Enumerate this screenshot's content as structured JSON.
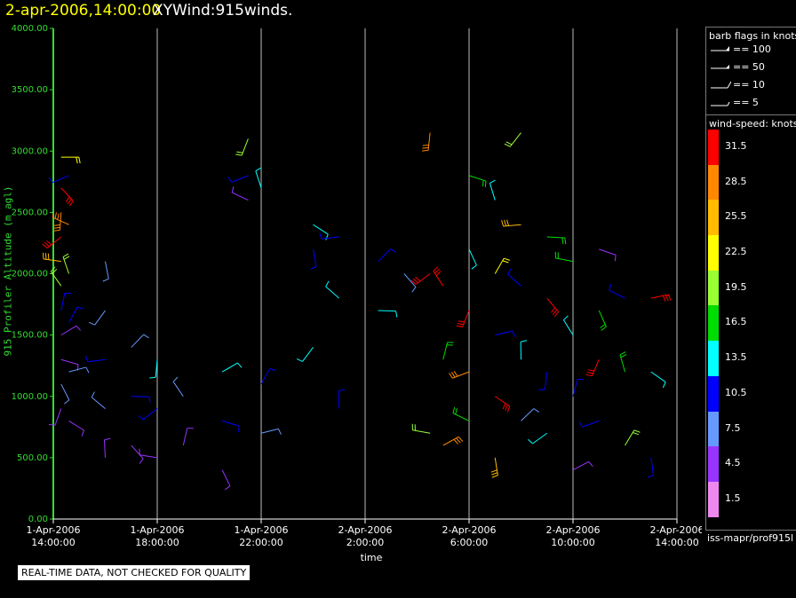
{
  "header": {
    "date_time": "2-apr-2006,14:00:00",
    "title": "XYWind:915winds."
  },
  "legend": {
    "flags_title": "barb flags in knots",
    "flags": [
      {
        "label": "== 100"
      },
      {
        "label": "== 50"
      },
      {
        "label": "== 10"
      },
      {
        "label": "== 5"
      }
    ],
    "speed_title": "wind-speed: knots",
    "scale": [
      {
        "label": "31.5",
        "color": "#ff0000"
      },
      {
        "label": "28.5",
        "color": "#ff8800"
      },
      {
        "label": "25.5",
        "color": "#ffbb00"
      },
      {
        "label": "22.5",
        "color": "#ffff00"
      },
      {
        "label": "19.5",
        "color": "#99ff33"
      },
      {
        "label": "16.5",
        "color": "#00dd00"
      },
      {
        "label": "13.5",
        "color": "#00ffff"
      },
      {
        "label": "10.5",
        "color": "#0000ff"
      },
      {
        "label": "7.5",
        "color": "#6699ff"
      },
      {
        "label": "4.5",
        "color": "#9933ff"
      },
      {
        "label": "1.5",
        "color": "#ee88ee"
      }
    ]
  },
  "footer": {
    "source": "iss-mapr/prof915l",
    "qc_notice": "REAL-TIME DATA, NOT CHECKED FOR QUALITY"
  },
  "chart_data": {
    "type": "scatter",
    "ylabel": "915 Profiler Altitude (m agl)",
    "xlabel": "time",
    "ylim": [
      0,
      4000
    ],
    "yticks": [
      "4000.00",
      "3500.00",
      "3000.00",
      "2500.00",
      "2000.00",
      "1500.00",
      "1000.00",
      "500.00",
      "0.00"
    ],
    "xlim": [
      "1-Apr-2006 14:00:00",
      "2-Apr-2006 14:00:00"
    ],
    "xticks": [
      {
        "date": "1-Apr-2006",
        "time": "14:00:00"
      },
      {
        "date": "1-Apr-2006",
        "time": "18:00:00"
      },
      {
        "date": "1-Apr-2006",
        "time": "22:00:00"
      },
      {
        "date": "2-Apr-2006",
        "time": "2:00:00"
      },
      {
        "date": "2-Apr-2006",
        "time": "6:00:00"
      },
      {
        "date": "2-Apr-2006",
        "time": "10:00:00"
      },
      {
        "date": "2-Apr-2006",
        "time": "14:00:00"
      }
    ],
    "grid": "vertical",
    "series_note": "wind barbs colored by wind speed (knots)",
    "points": [
      {
        "t": 0.3,
        "alt": 2950,
        "spd": 22
      },
      {
        "t": 0.3,
        "alt": 2700,
        "spd": 31
      },
      {
        "t": 0.3,
        "alt": 2500,
        "spd": 28
      },
      {
        "t": 0.3,
        "alt": 2300,
        "spd": 31
      },
      {
        "t": 0.3,
        "alt": 2100,
        "spd": 25
      },
      {
        "t": 0.3,
        "alt": 1900,
        "spd": 19
      },
      {
        "t": 0.3,
        "alt": 1700,
        "spd": 10
      },
      {
        "t": 0.3,
        "alt": 1500,
        "spd": 5
      },
      {
        "t": 0.3,
        "alt": 1300,
        "spd": 4
      },
      {
        "t": 0.3,
        "alt": 1100,
        "spd": 7
      },
      {
        "t": 0.3,
        "alt": 900,
        "spd": 4
      },
      {
        "t": 0.6,
        "alt": 2800,
        "spd": 10
      },
      {
        "t": 0.6,
        "alt": 2400,
        "spd": 28
      },
      {
        "t": 0.6,
        "alt": 2000,
        "spd": 19
      },
      {
        "t": 0.6,
        "alt": 1600,
        "spd": 10
      },
      {
        "t": 0.6,
        "alt": 1200,
        "spd": 7
      },
      {
        "t": 0.6,
        "alt": 800,
        "spd": 4
      },
      {
        "t": 2.0,
        "alt": 2100,
        "spd": 7
      },
      {
        "t": 2.0,
        "alt": 1700,
        "spd": 7
      },
      {
        "t": 2.0,
        "alt": 1300,
        "spd": 10
      },
      {
        "t": 2.0,
        "alt": 900,
        "spd": 7
      },
      {
        "t": 2.0,
        "alt": 500,
        "spd": 4
      },
      {
        "t": 3.0,
        "alt": 1400,
        "spd": 7
      },
      {
        "t": 3.0,
        "alt": 1000,
        "spd": 10
      },
      {
        "t": 3.0,
        "alt": 600,
        "spd": 4
      },
      {
        "t": 4.0,
        "alt": 1300,
        "spd": 13
      },
      {
        "t": 4.0,
        "alt": 900,
        "spd": 10
      },
      {
        "t": 4.0,
        "alt": 500,
        "spd": 4
      },
      {
        "t": 5.0,
        "alt": 1000,
        "spd": 7
      },
      {
        "t": 5.0,
        "alt": 600,
        "spd": 4
      },
      {
        "t": 6.5,
        "alt": 1200,
        "spd": 13
      },
      {
        "t": 6.5,
        "alt": 800,
        "spd": 10
      },
      {
        "t": 6.5,
        "alt": 400,
        "spd": 4
      },
      {
        "t": 7.5,
        "alt": 3100,
        "spd": 19
      },
      {
        "t": 7.5,
        "alt": 2800,
        "spd": 10
      },
      {
        "t": 7.5,
        "alt": 2600,
        "spd": 4
      },
      {
        "t": 8.0,
        "alt": 2700,
        "spd": 13
      },
      {
        "t": 8.0,
        "alt": 1100,
        "spd": 10
      },
      {
        "t": 8.0,
        "alt": 700,
        "spd": 7
      },
      {
        "t": 10.0,
        "alt": 2400,
        "spd": 13
      },
      {
        "t": 10.0,
        "alt": 2200,
        "spd": 10
      },
      {
        "t": 10.0,
        "alt": 1400,
        "spd": 13
      },
      {
        "t": 11.0,
        "alt": 2300,
        "spd": 10
      },
      {
        "t": 11.0,
        "alt": 1800,
        "spd": 13
      },
      {
        "t": 11.0,
        "alt": 900,
        "spd": 10
      },
      {
        "t": 12.5,
        "alt": 2100,
        "spd": 10
      },
      {
        "t": 12.5,
        "alt": 1700,
        "spd": 13
      },
      {
        "t": 13.5,
        "alt": 2000,
        "spd": 7
      },
      {
        "t": 14.5,
        "alt": 3150,
        "spd": 28
      },
      {
        "t": 14.5,
        "alt": 2000,
        "spd": 31
      },
      {
        "t": 14.5,
        "alt": 700,
        "spd": 19
      },
      {
        "t": 15.0,
        "alt": 1900,
        "spd": 31
      },
      {
        "t": 15.0,
        "alt": 1300,
        "spd": 16
      },
      {
        "t": 15.0,
        "alt": 600,
        "spd": 28
      },
      {
        "t": 16.0,
        "alt": 2800,
        "spd": 16
      },
      {
        "t": 16.0,
        "alt": 2200,
        "spd": 13
      },
      {
        "t": 16.0,
        "alt": 1700,
        "spd": 31
      },
      {
        "t": 16.0,
        "alt": 1200,
        "spd": 28
      },
      {
        "t": 16.0,
        "alt": 800,
        "spd": 16
      },
      {
        "t": 17.0,
        "alt": 2600,
        "spd": 13
      },
      {
        "t": 17.0,
        "alt": 2000,
        "spd": 22
      },
      {
        "t": 17.0,
        "alt": 1500,
        "spd": 10
      },
      {
        "t": 17.0,
        "alt": 1000,
        "spd": 31
      },
      {
        "t": 17.0,
        "alt": 500,
        "spd": 25
      },
      {
        "t": 18.0,
        "alt": 3150,
        "spd": 19
      },
      {
        "t": 18.0,
        "alt": 2400,
        "spd": 25
      },
      {
        "t": 18.0,
        "alt": 1900,
        "spd": 10
      },
      {
        "t": 18.0,
        "alt": 1300,
        "spd": 13
      },
      {
        "t": 18.0,
        "alt": 800,
        "spd": 7
      },
      {
        "t": 19.0,
        "alt": 2300,
        "spd": 16
      },
      {
        "t": 19.0,
        "alt": 1800,
        "spd": 31
      },
      {
        "t": 19.0,
        "alt": 1200,
        "spd": 10
      },
      {
        "t": 19.0,
        "alt": 700,
        "spd": 13
      },
      {
        "t": 20.0,
        "alt": 2100,
        "spd": 16
      },
      {
        "t": 20.0,
        "alt": 1500,
        "spd": 13
      },
      {
        "t": 20.0,
        "alt": 1000,
        "spd": 10
      },
      {
        "t": 20.0,
        "alt": 400,
        "spd": 4
      },
      {
        "t": 21.0,
        "alt": 2200,
        "spd": 4
      },
      {
        "t": 21.0,
        "alt": 1700,
        "spd": 16
      },
      {
        "t": 21.0,
        "alt": 1300,
        "spd": 31
      },
      {
        "t": 21.0,
        "alt": 800,
        "spd": 10
      },
      {
        "t": 22.0,
        "alt": 1800,
        "spd": 10
      },
      {
        "t": 22.0,
        "alt": 1200,
        "spd": 16
      },
      {
        "t": 22.0,
        "alt": 600,
        "spd": 19
      },
      {
        "t": 23.0,
        "alt": 1800,
        "spd": 31
      },
      {
        "t": 23.0,
        "alt": 1200,
        "spd": 13
      },
      {
        "t": 23.0,
        "alt": 500,
        "spd": 10
      }
    ]
  }
}
